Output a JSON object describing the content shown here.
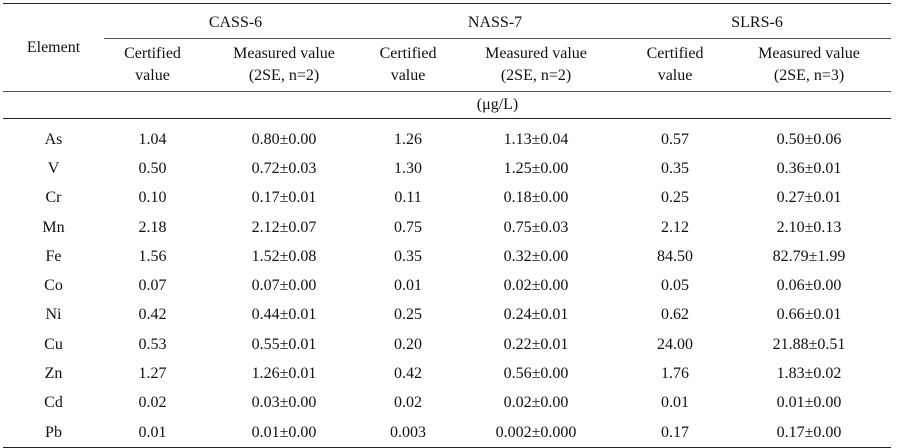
{
  "header": {
    "element_label": "Element",
    "groups": [
      "CASS-6",
      "NASS-7",
      "SLRS-6"
    ],
    "subheaders": [
      {
        "line1": "Certified",
        "line2": "value"
      },
      {
        "line1": "Measured value",
        "line2": "(2SE, n=2)"
      },
      {
        "line1": "Certified",
        "line2": "value"
      },
      {
        "line1": "Measured value",
        "line2": "(2SE, n=2)"
      },
      {
        "line1": "Certified",
        "line2": "value"
      },
      {
        "line1": "Measured value",
        "line2": "(2SE, n=3)"
      }
    ],
    "unit": "(μg/L)"
  },
  "rows": [
    [
      "As",
      "1.04",
      "0.80±0.00",
      "1.26",
      "1.13±0.04",
      "0.57",
      "0.50±0.06"
    ],
    [
      "V",
      "0.50",
      "0.72±0.03",
      "1.30",
      "1.25±0.00",
      "0.35",
      "0.36±0.01"
    ],
    [
      "Cr",
      "0.10",
      "0.17±0.01",
      "0.11",
      "0.18±0.00",
      "0.25",
      "0.27±0.01"
    ],
    [
      "Mn",
      "2.18",
      "2.12±0.07",
      "0.75",
      "0.75±0.03",
      "2.12",
      "2.10±0.13"
    ],
    [
      "Fe",
      "1.56",
      "1.52±0.08",
      "0.35",
      "0.32±0.00",
      "84.50",
      "82.79±1.99"
    ],
    [
      "Co",
      "0.07",
      "0.07±0.00",
      "0.01",
      "0.02±0.00",
      "0.05",
      "0.06±0.00"
    ],
    [
      "Ni",
      "0.42",
      "0.44±0.01",
      "0.25",
      "0.24±0.01",
      "0.62",
      "0.66±0.01"
    ],
    [
      "Cu",
      "0.53",
      "0.55±0.01",
      "0.20",
      "0.22±0.01",
      "24.00",
      "21.88±0.51"
    ],
    [
      "Zn",
      "1.27",
      "1.26±0.01",
      "0.42",
      "0.56±0.00",
      "1.76",
      "1.83±0.02"
    ],
    [
      "Cd",
      "0.02",
      "0.03±0.00",
      "0.02",
      "0.02±0.00",
      "0.01",
      "0.01±0.00"
    ],
    [
      "Pb",
      "0.01",
      "0.01±0.00",
      "0.003",
      "0.002±0.000",
      "0.17",
      "0.17±0.00"
    ]
  ]
}
